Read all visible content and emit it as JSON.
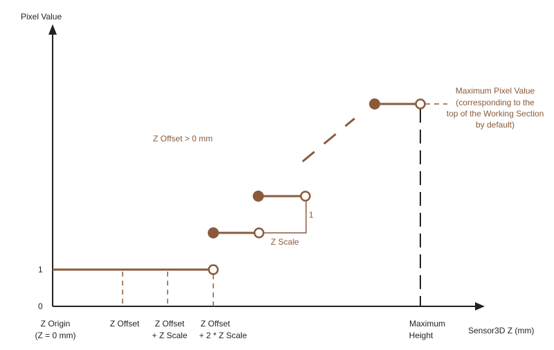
{
  "axes": {
    "y_label": "Pixel Value",
    "x_label": "Sensor3D Z (mm)",
    "y_tick_1": "1",
    "y_tick_0": "0"
  },
  "x_ticks": {
    "origin_line1": "Z Origin",
    "origin_line2": "(Z = 0 mm)",
    "offset": "Z Offset",
    "offset_scale_line1": "Z Offset",
    "offset_scale_line2": "+ Z Scale",
    "offset_2scale_line1": "Z Offset",
    "offset_2scale_line2": "+ 2 * Z Scale",
    "max_line1": "Maximum",
    "max_line2": "Height"
  },
  "annotations": {
    "z_offset_condition": "Z Offset > 0 mm",
    "z_scale": "Z Scale",
    "step_height": "1",
    "max_pixel_line1": "Maximum Pixel Value",
    "max_pixel_line2": "(corresponding to the",
    "max_pixel_line3": "top of the Working Section",
    "max_pixel_line4": "by default)"
  },
  "colors": {
    "curve": "#8a5a3a",
    "axis": "#222222"
  }
}
